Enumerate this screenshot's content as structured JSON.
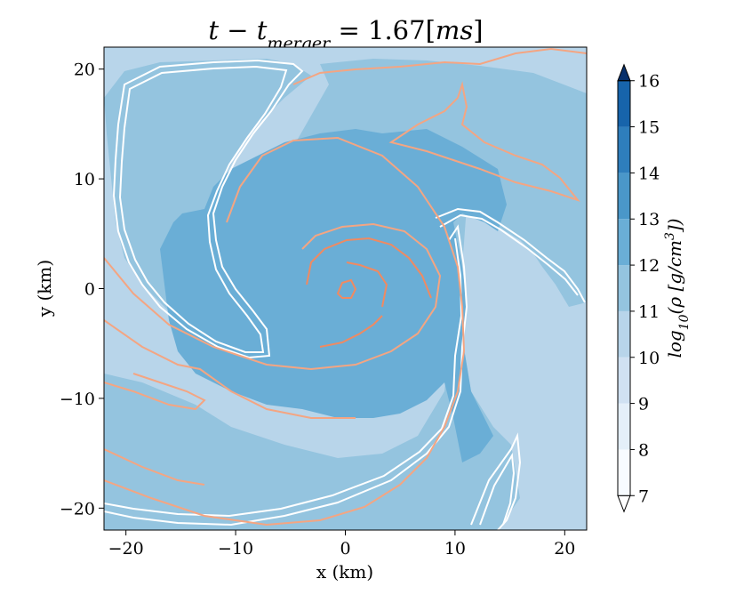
{
  "chart_data": {
    "type": "heatmap",
    "title": "t − t_merger = 1.67[ms]",
    "title_parts": {
      "a": "t − t",
      "sub": "merger",
      "b": " = 1.67[",
      "c": "ms",
      "d": "]"
    },
    "xlabel": "x (km)",
    "ylabel": "y (km)",
    "xlim": [
      -22,
      22
    ],
    "ylim": [
      -22,
      22
    ],
    "xticks": [
      -20,
      -10,
      0,
      10,
      20
    ],
    "yticks": [
      -20,
      -10,
      0,
      10,
      20
    ],
    "xtick_labels": [
      "−20",
      "−10",
      "0",
      "10",
      "20"
    ],
    "ytick_labels": [
      "−20",
      "−10",
      "0",
      "10",
      "20"
    ],
    "grid": false,
    "colorbar": {
      "label_parts": {
        "a": "log",
        "sub": "10",
        "b": "(ρ [g/cm",
        "sup": "3",
        "c": "])"
      },
      "levels": [
        7,
        8,
        9,
        10,
        11,
        12,
        13,
        14,
        15,
        16
      ],
      "tick_labels": [
        "7",
        "8",
        "9",
        "10",
        "11",
        "12",
        "13",
        "14",
        "15",
        "16"
      ],
      "range": [
        6.6,
        16.4
      ],
      "extend": "both",
      "colors": [
        "#ffffff",
        "#f7fbff",
        "#e4eff9",
        "#d0e1f2",
        "#b8d5ea",
        "#94c4df",
        "#6aaed6",
        "#4a97c9",
        "#2e7ebc",
        "#1764ab",
        "#0a4a90",
        "#08306b"
      ]
    },
    "filled_regions": [
      {
        "name": "outer-envelope",
        "level": 10,
        "color": "#b8d5ea"
      },
      {
        "name": "upper-left-disk",
        "level": 11,
        "color": "#94c4df"
      },
      {
        "name": "main-disk",
        "level": 11,
        "color": "#94c4df"
      },
      {
        "name": "central-spiral",
        "level": 12,
        "color": "#6aaed6"
      }
    ],
    "contour_colors": {
      "white": "#ffffff",
      "salmon": "#f4a582",
      "red": "#ef8a62"
    }
  }
}
